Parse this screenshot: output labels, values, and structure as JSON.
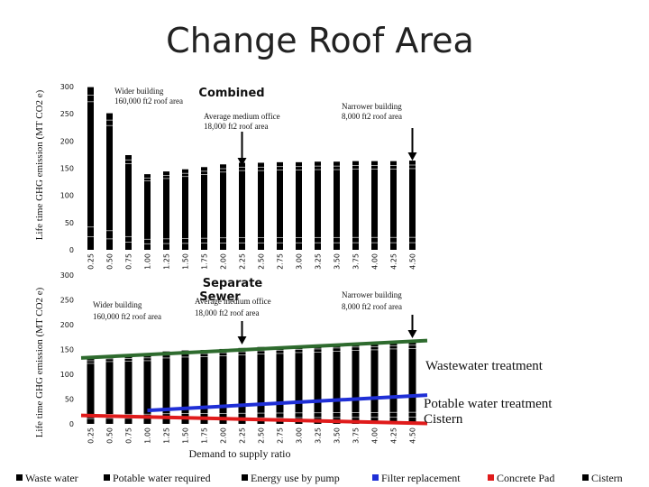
{
  "title": "Change Roof Area",
  "y_axis_label": "Life time GHG emission (MT CO2 e)",
  "x_axis_label": "Demand to supply ratio",
  "colors": {
    "bar_black": "#000000",
    "waste_line": "#2e6b2e",
    "potable_line": "#1f2fd6",
    "cistern_line": "#e01b1b",
    "arrow": "#000000",
    "gap": "#dddddd"
  },
  "legend": [
    {
      "label": "Waste water",
      "color": "#000000"
    },
    {
      "label": "Potable water required",
      "color": "#000000"
    },
    {
      "label": "Energy use by pump",
      "color": "#000000"
    },
    {
      "label": "Filter replacement",
      "color": "#1f2fd6"
    },
    {
      "label": "Concrete Pad",
      "color": "#e01b1b"
    },
    {
      "label": "Cistern",
      "color": "#000000"
    }
  ],
  "chart_data": [
    {
      "type": "bar",
      "panel_label": "Combined",
      "categories": [
        "0.25",
        "0.50",
        "0.75",
        "1.00",
        "1.25",
        "1.50",
        "1.75",
        "2.00",
        "2.25",
        "2.50",
        "2.75",
        "3.00",
        "3.25",
        "3.50",
        "3.75",
        "4.00",
        "4.25",
        "4.50"
      ],
      "values": [
        299,
        251,
        174,
        139,
        144,
        148,
        152,
        157,
        160,
        160,
        161,
        161,
        162,
        162,
        163,
        163,
        163,
        164
      ],
      "ylim": [
        0,
        300
      ],
      "yticks": [
        0,
        50,
        100,
        150,
        200,
        250,
        300
      ],
      "annotations": [
        {
          "text": "Wider building 160,000 ft2 roof area",
          "at_category": "0.25"
        },
        {
          "text": "Average medium office 18,000 ft2 roof area",
          "at_category": "2.00"
        },
        {
          "text": "Narrower building 8,000 ft2 roof area",
          "at_category": "4.50"
        }
      ]
    },
    {
      "type": "bar",
      "panel_label": "Separate Sewer",
      "categories": [
        "0.25",
        "0.50",
        "0.75",
        "1.00",
        "1.25",
        "1.50",
        "1.75",
        "2.00",
        "2.25",
        "2.50",
        "2.75",
        "3.00",
        "3.25",
        "3.50",
        "3.75",
        "4.00",
        "4.25",
        "4.50"
      ],
      "values": [
        134,
        138,
        139,
        140,
        146,
        148,
        149,
        151,
        153,
        155,
        156,
        158,
        159,
        161,
        163,
        164,
        166,
        167
      ],
      "ylim": [
        0,
        300
      ],
      "yticks": [
        0,
        50,
        100,
        150,
        200,
        250,
        300
      ],
      "trend_lines": [
        {
          "name": "Wastewater treatment",
          "color": "#2e6b2e",
          "from": 133,
          "to": 168
        },
        {
          "name": "Potable water treatment",
          "color": "#1f2fd6",
          "from": 27,
          "to": 58,
          "start_category": "1.00"
        },
        {
          "name": "Cistern",
          "color": "#e01b1b",
          "from": 17,
          "to": 1
        }
      ],
      "annotations": [
        {
          "text": "Wider building 160,000 ft2 roof area",
          "at_category": "0.25"
        },
        {
          "text": "Average medium office 18,000 ft2 roof area",
          "at_category": "2.00"
        },
        {
          "text": "Narrower building 8,000 ft2 roof area",
          "at_category": "4.50"
        }
      ]
    }
  ]
}
